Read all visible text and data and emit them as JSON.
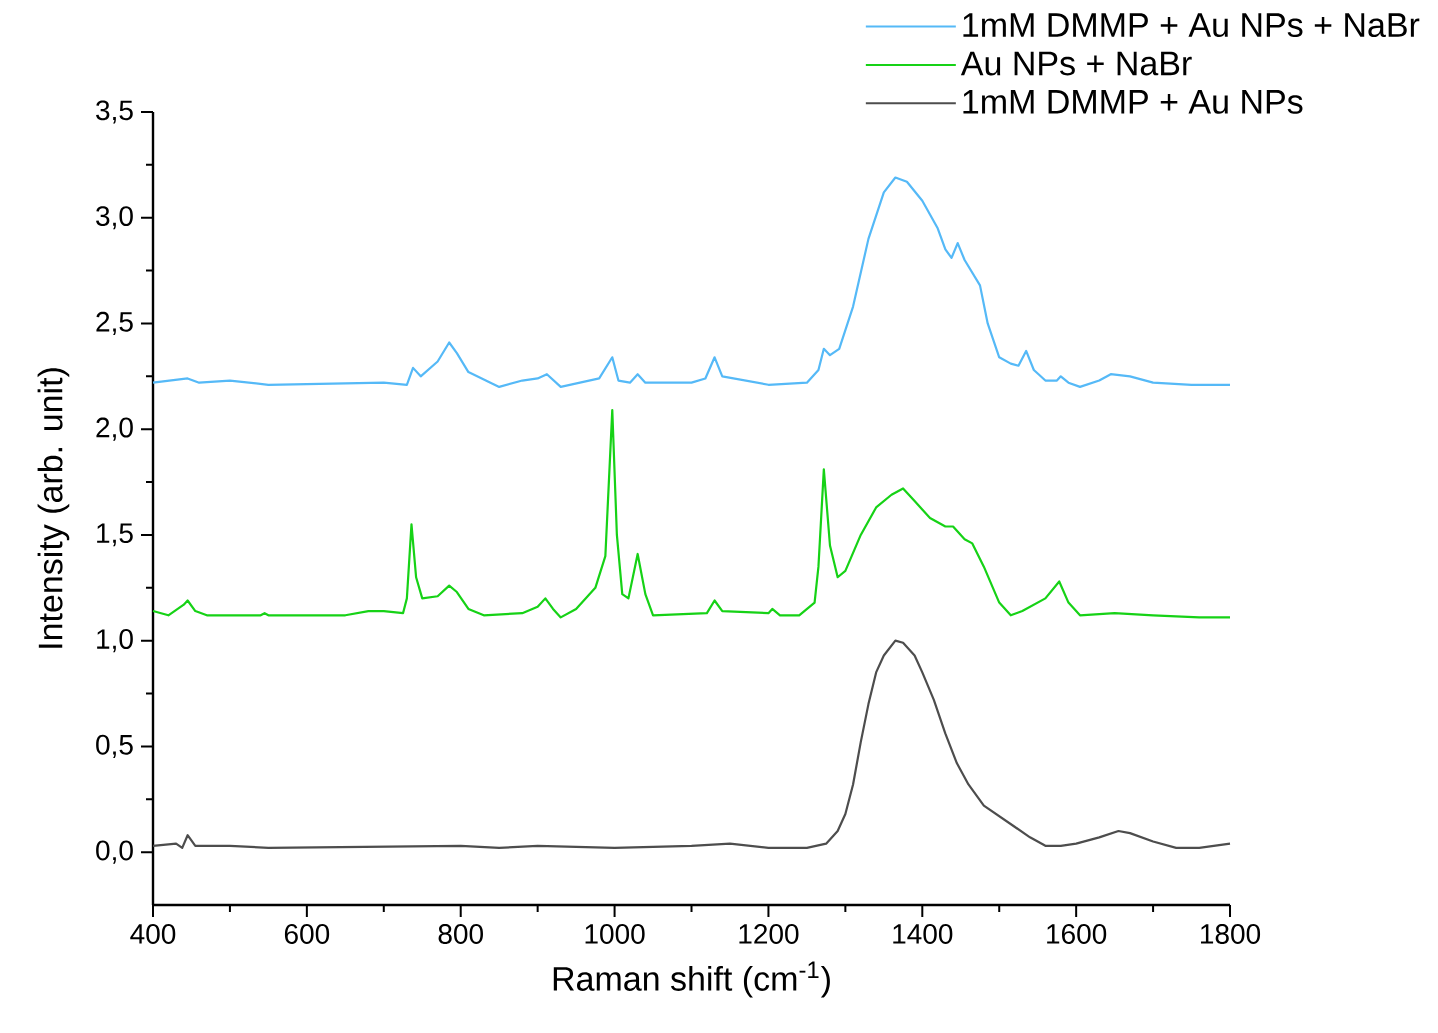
{
  "chart_data": {
    "type": "line",
    "xlabel": "Raman shift (cm$^{-1}$)",
    "ylabel": "Intensity (arb. unit)",
    "xlim": [
      400,
      1800
    ],
    "ylim": [
      -0.25,
      3.5
    ],
    "xticks": [
      400,
      600,
      800,
      1000,
      1200,
      1400,
      1600,
      1800
    ],
    "yticks": [
      {
        "value": 0,
        "label": "0,0"
      },
      {
        "value": 0.5,
        "label": "0,5"
      },
      {
        "value": 1,
        "label": "1,0"
      },
      {
        "value": 1.5,
        "label": "1,5"
      },
      {
        "value": 2,
        "label": "2,0"
      },
      {
        "value": 2.5,
        "label": "2,5"
      },
      {
        "value": 3,
        "label": "3,0"
      },
      {
        "value": 3.5,
        "label": "3,5"
      }
    ],
    "legend": "top right",
    "grid": false,
    "series": [
      {
        "name": "1mM DMMP + Au NPs + NaBr",
        "color": "#55b9f7",
        "x": [
          400,
          445,
          460,
          500,
          550,
          700,
          730,
          738,
          748,
          770,
          785,
          795,
          810,
          850,
          880,
          900,
          912,
          930,
          980,
          997,
          1005,
          1020,
          1030,
          1040,
          1100,
          1118,
          1130,
          1140,
          1200,
          1250,
          1265,
          1272,
          1280,
          1292,
          1310,
          1330,
          1350,
          1365,
          1380,
          1400,
          1420,
          1430,
          1438,
          1446,
          1455,
          1465,
          1475,
          1485,
          1500,
          1515,
          1525,
          1535,
          1545,
          1560,
          1575,
          1580,
          1590,
          1605,
          1630,
          1645,
          1670,
          1700,
          1750,
          1800
        ],
        "values": [
          2.22,
          2.24,
          2.22,
          2.23,
          2.21,
          2.22,
          2.21,
          2.29,
          2.25,
          2.32,
          2.41,
          2.36,
          2.27,
          2.2,
          2.23,
          2.24,
          2.26,
          2.2,
          2.24,
          2.34,
          2.23,
          2.22,
          2.26,
          2.22,
          2.22,
          2.24,
          2.34,
          2.25,
          2.21,
          2.22,
          2.28,
          2.38,
          2.35,
          2.38,
          2.58,
          2.9,
          3.12,
          3.19,
          3.17,
          3.08,
          2.95,
          2.85,
          2.81,
          2.88,
          2.8,
          2.74,
          2.68,
          2.5,
          2.34,
          2.31,
          2.3,
          2.37,
          2.28,
          2.23,
          2.23,
          2.25,
          2.22,
          2.2,
          2.23,
          2.26,
          2.25,
          2.22,
          2.21,
          2.21
        ]
      },
      {
        "name": "Au NPs + NaBr",
        "color": "#16d216",
        "x": [
          400,
          420,
          440,
          445,
          455,
          470,
          540,
          545,
          550,
          650,
          680,
          700,
          725,
          730,
          736,
          742,
          750,
          770,
          785,
          795,
          810,
          830,
          880,
          900,
          910,
          920,
          930,
          950,
          975,
          988,
          997,
          1003,
          1010,
          1018,
          1030,
          1040,
          1050,
          1120,
          1130,
          1140,
          1200,
          1205,
          1215,
          1240,
          1260,
          1265,
          1272,
          1280,
          1290,
          1300,
          1320,
          1340,
          1360,
          1375,
          1390,
          1410,
          1430,
          1440,
          1455,
          1465,
          1480,
          1500,
          1515,
          1530,
          1560,
          1578,
          1590,
          1605,
          1650,
          1700,
          1760,
          1800
        ],
        "values": [
          1.14,
          1.12,
          1.17,
          1.19,
          1.14,
          1.12,
          1.12,
          1.13,
          1.12,
          1.12,
          1.14,
          1.14,
          1.13,
          1.2,
          1.55,
          1.3,
          1.2,
          1.21,
          1.26,
          1.23,
          1.15,
          1.12,
          1.13,
          1.16,
          1.2,
          1.15,
          1.11,
          1.15,
          1.25,
          1.4,
          2.09,
          1.5,
          1.22,
          1.2,
          1.41,
          1.22,
          1.12,
          1.13,
          1.19,
          1.14,
          1.13,
          1.15,
          1.12,
          1.12,
          1.18,
          1.35,
          1.81,
          1.45,
          1.3,
          1.33,
          1.5,
          1.63,
          1.69,
          1.72,
          1.66,
          1.58,
          1.54,
          1.54,
          1.48,
          1.46,
          1.35,
          1.18,
          1.12,
          1.14,
          1.2,
          1.28,
          1.18,
          1.12,
          1.13,
          1.12,
          1.11,
          1.11
        ]
      },
      {
        "name": "1mM DMMP + Au NPs",
        "color": "#4d4d4d",
        "x": [
          400,
          430,
          438,
          445,
          455,
          500,
          550,
          800,
          850,
          900,
          1000,
          1100,
          1150,
          1200,
          1250,
          1275,
          1290,
          1300,
          1310,
          1320,
          1330,
          1340,
          1350,
          1365,
          1375,
          1390,
          1400,
          1415,
          1430,
          1445,
          1460,
          1480,
          1500,
          1520,
          1540,
          1560,
          1580,
          1600,
          1630,
          1655,
          1670,
          1700,
          1730,
          1760,
          1800
        ],
        "values": [
          0.03,
          0.04,
          0.02,
          0.08,
          0.03,
          0.03,
          0.02,
          0.03,
          0.02,
          0.03,
          0.02,
          0.03,
          0.04,
          0.02,
          0.02,
          0.04,
          0.1,
          0.18,
          0.32,
          0.52,
          0.7,
          0.85,
          0.93,
          1.0,
          0.99,
          0.93,
          0.85,
          0.72,
          0.56,
          0.42,
          0.32,
          0.22,
          0.17,
          0.12,
          0.07,
          0.03,
          0.03,
          0.04,
          0.07,
          0.1,
          0.09,
          0.05,
          0.02,
          0.02,
          0.04
        ]
      }
    ]
  }
}
